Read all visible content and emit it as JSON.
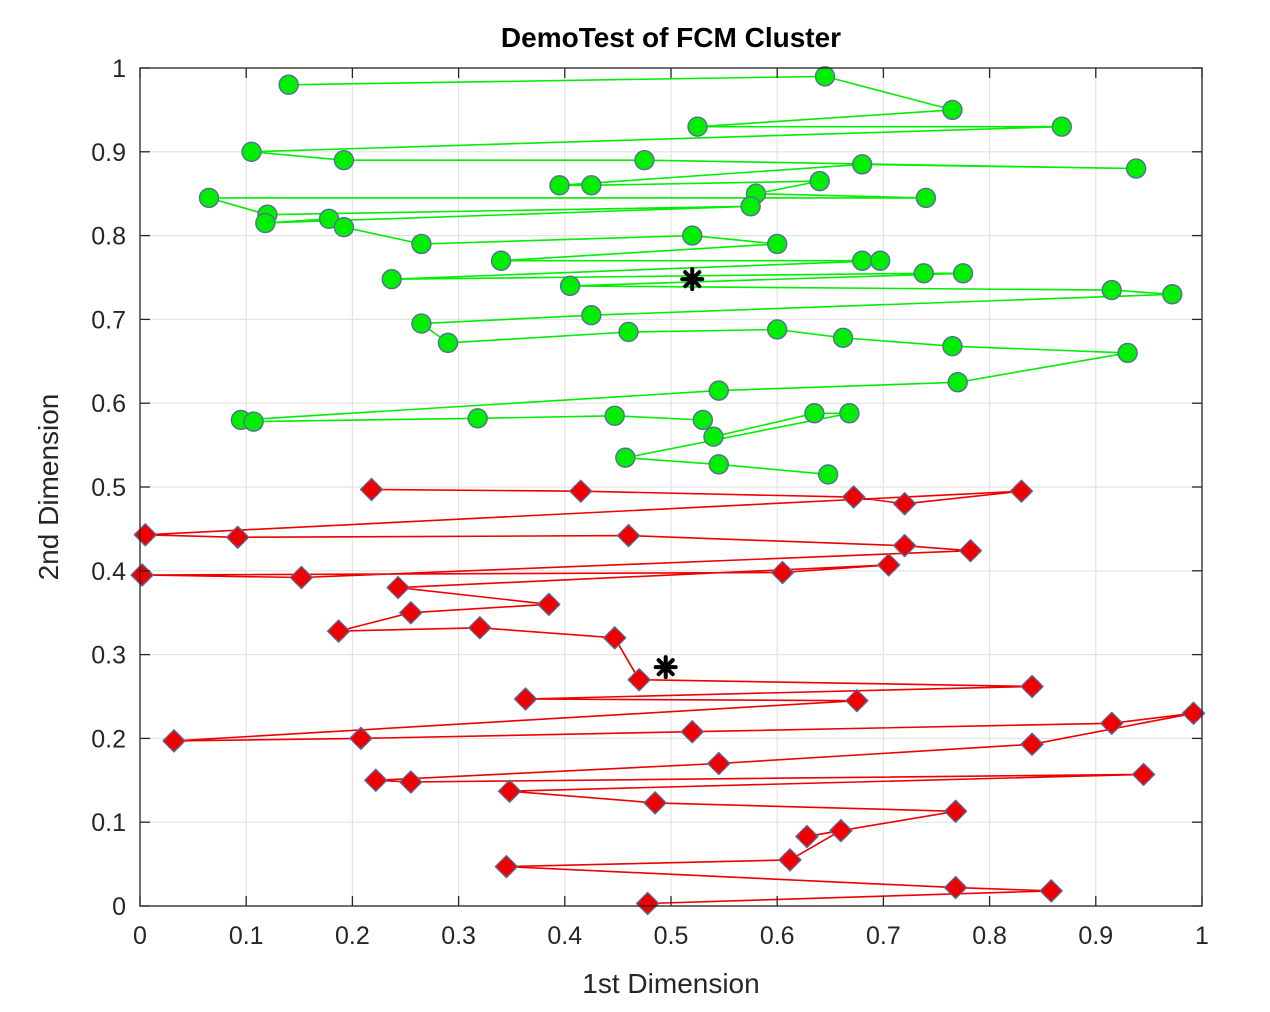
{
  "chart_data": {
    "type": "scatter",
    "title": "DemoTest of FCM Cluster",
    "xlabel": "1st Dimension",
    "ylabel": "2nd Dimension",
    "xlim": [
      0,
      1
    ],
    "ylim": [
      0,
      1
    ],
    "xticks": [
      "0",
      "0.1",
      "0.2",
      "0.3",
      "0.4",
      "0.5",
      "0.6",
      "0.7",
      "0.8",
      "0.9",
      "1"
    ],
    "yticks": [
      "0",
      "0.1",
      "0.2",
      "0.3",
      "0.4",
      "0.5",
      "0.6",
      "0.7",
      "0.8",
      "0.9",
      "1"
    ],
    "grid": true,
    "box": true,
    "marker_edge_color": "#5a6c9c",
    "center_color": "#000000",
    "series": [
      {
        "color": "#00ee00",
        "marker": "circle",
        "connected": true,
        "points": [
          [
            0.14,
            0.98
          ],
          [
            0.645,
            0.99
          ],
          [
            0.765,
            0.95
          ],
          [
            0.525,
            0.93
          ],
          [
            0.868,
            0.93
          ],
          [
            0.105,
            0.9
          ],
          [
            0.192,
            0.89
          ],
          [
            0.475,
            0.89
          ],
          [
            0.938,
            0.88
          ],
          [
            0.68,
            0.885
          ],
          [
            0.395,
            0.86
          ],
          [
            0.425,
            0.86
          ],
          [
            0.64,
            0.865
          ],
          [
            0.58,
            0.85
          ],
          [
            0.74,
            0.845
          ],
          [
            0.065,
            0.845
          ],
          [
            0.12,
            0.825
          ],
          [
            0.575,
            0.835
          ],
          [
            0.118,
            0.815
          ],
          [
            0.178,
            0.82
          ],
          [
            0.192,
            0.81
          ],
          [
            0.265,
            0.79
          ],
          [
            0.52,
            0.8
          ],
          [
            0.6,
            0.79
          ],
          [
            0.34,
            0.77
          ],
          [
            0.68,
            0.77
          ],
          [
            0.697,
            0.77
          ],
          [
            0.237,
            0.748
          ],
          [
            0.738,
            0.755
          ],
          [
            0.775,
            0.755
          ],
          [
            0.405,
            0.74
          ],
          [
            0.915,
            0.735
          ],
          [
            0.972,
            0.73
          ],
          [
            0.425,
            0.705
          ],
          [
            0.265,
            0.695
          ],
          [
            0.29,
            0.672
          ],
          [
            0.46,
            0.685
          ],
          [
            0.6,
            0.688
          ],
          [
            0.662,
            0.678
          ],
          [
            0.765,
            0.668
          ],
          [
            0.93,
            0.66
          ],
          [
            0.77,
            0.625
          ],
          [
            0.545,
            0.615
          ],
          [
            0.095,
            0.58
          ],
          [
            0.107,
            0.578
          ],
          [
            0.318,
            0.582
          ],
          [
            0.447,
            0.585
          ],
          [
            0.53,
            0.58
          ],
          [
            0.54,
            0.56
          ],
          [
            0.635,
            0.588
          ],
          [
            0.668,
            0.588
          ],
          [
            0.457,
            0.535
          ],
          [
            0.545,
            0.527
          ],
          [
            0.648,
            0.515
          ]
        ]
      },
      {
        "color": "#ee0000",
        "marker": "circle",
        "connected": true,
        "points": [
          [
            0.218,
            0.497
          ],
          [
            0.415,
            0.495
          ],
          [
            0.672,
            0.488
          ],
          [
            0.72,
            0.48
          ],
          [
            0.83,
            0.495
          ],
          [
            0.005,
            0.443
          ],
          [
            0.092,
            0.44
          ],
          [
            0.46,
            0.442
          ],
          [
            0.72,
            0.43
          ],
          [
            0.782,
            0.424
          ],
          [
            0.152,
            0.392
          ],
          [
            0.002,
            0.395
          ],
          [
            0.605,
            0.398
          ],
          [
            0.705,
            0.407
          ],
          [
            0.243,
            0.38
          ],
          [
            0.385,
            0.36
          ],
          [
            0.255,
            0.35
          ],
          [
            0.187,
            0.328
          ],
          [
            0.32,
            0.332
          ],
          [
            0.447,
            0.32
          ],
          [
            0.47,
            0.27
          ],
          [
            0.84,
            0.262
          ],
          [
            0.363,
            0.247
          ],
          [
            0.675,
            0.245
          ],
          [
            0.032,
            0.197
          ],
          [
            0.208,
            0.2
          ],
          [
            0.52,
            0.208
          ],
          [
            0.915,
            0.218
          ],
          [
            0.992,
            0.23
          ],
          [
            0.84,
            0.193
          ],
          [
            0.545,
            0.17
          ],
          [
            0.222,
            0.15
          ],
          [
            0.255,
            0.148
          ],
          [
            0.945,
            0.157
          ],
          [
            0.348,
            0.137
          ],
          [
            0.485,
            0.123
          ],
          [
            0.768,
            0.113
          ],
          [
            0.628,
            0.083
          ],
          [
            0.66,
            0.09
          ],
          [
            0.612,
            0.055
          ],
          [
            0.345,
            0.047
          ],
          [
            0.768,
            0.022
          ],
          [
            0.858,
            0.018
          ],
          [
            0.478,
            0.003
          ]
        ]
      }
    ],
    "centers": [
      [
        0.52,
        0.748
      ],
      [
        0.495,
        0.285
      ]
    ]
  }
}
